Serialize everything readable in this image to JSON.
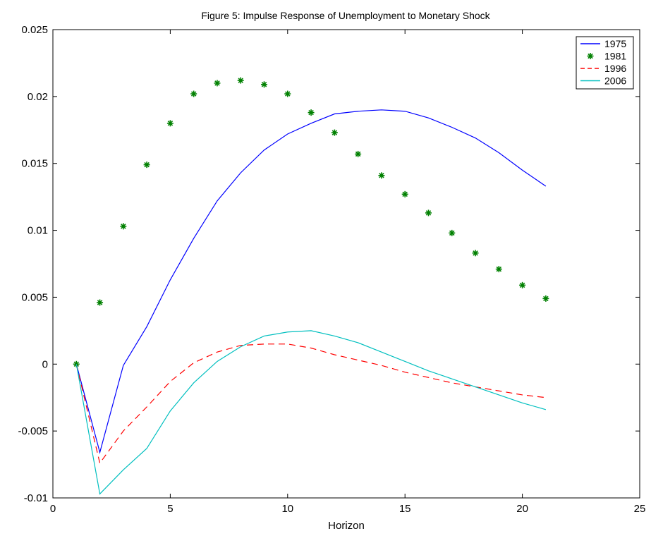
{
  "chart_data": {
    "type": "line",
    "title": "Figure 5: Impulse Response of Unemployment to Monetary Shock",
    "xlabel": "Horizon",
    "ylabel": "",
    "xlim": [
      0,
      25
    ],
    "ylim": [
      -0.01,
      0.025
    ],
    "x_ticks": [
      "0",
      "5",
      "10",
      "15",
      "20",
      "25"
    ],
    "y_ticks": [
      "-0.01",
      "-0.005",
      "0",
      "0.005",
      "0.01",
      "0.015",
      "0.02",
      "0.025"
    ],
    "grid": false,
    "legend_position": "top-right",
    "x": [
      1,
      2,
      3,
      4,
      5,
      6,
      7,
      8,
      9,
      10,
      11,
      12,
      13,
      14,
      15,
      16,
      17,
      18,
      19,
      20,
      21
    ],
    "series": [
      {
        "name": "1975",
        "style": "solid",
        "color": "#0000ff",
        "values": [
          0.0,
          -0.0066,
          -0.0001,
          0.0028,
          0.0063,
          0.0094,
          0.0122,
          0.0143,
          0.016,
          0.0172,
          0.018,
          0.0187,
          0.0189,
          0.019,
          0.0189,
          0.0184,
          0.0177,
          0.0169,
          0.0158,
          0.0145,
          0.0133
        ]
      },
      {
        "name": "1981",
        "style": "markers",
        "marker": "*",
        "color": "#008000",
        "values": [
          0.0,
          0.0046,
          0.0103,
          0.0149,
          0.018,
          0.0202,
          0.021,
          0.0212,
          0.0209,
          0.0202,
          0.0188,
          0.0173,
          0.0157,
          0.0141,
          0.0127,
          0.0113,
          0.0098,
          0.0083,
          0.0071,
          0.0059,
          0.0049
        ]
      },
      {
        "name": "1996",
        "style": "dashed",
        "color": "#ff0000",
        "values": [
          0.0,
          -0.0074,
          -0.005,
          -0.0032,
          -0.0013,
          0.0001,
          0.0009,
          0.0014,
          0.0015,
          0.0015,
          0.0012,
          0.0007,
          0.0003,
          -0.0001,
          -0.0006,
          -0.001,
          -0.0014,
          -0.0017,
          -0.002,
          -0.0023,
          -0.0025
        ]
      },
      {
        "name": "2006",
        "style": "solid",
        "color": "#00bfbf",
        "values": [
          0.0,
          -0.0097,
          -0.0079,
          -0.0063,
          -0.0035,
          -0.0014,
          0.0002,
          0.0013,
          0.0021,
          0.0024,
          0.0025,
          0.0021,
          0.0016,
          0.0009,
          0.0002,
          -0.0005,
          -0.0011,
          -0.0017,
          -0.0023,
          -0.0029,
          -0.0034
        ]
      }
    ]
  }
}
